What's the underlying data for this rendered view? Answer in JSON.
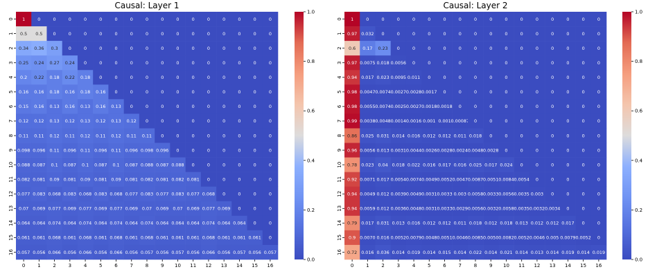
{
  "chart_data": [
    {
      "type": "heatmap",
      "title": "Causal: Layer 1",
      "xlabel": "",
      "ylabel": "",
      "x_ticks": [
        "0",
        "1",
        "2",
        "3",
        "4",
        "5",
        "6",
        "7",
        "8",
        "9",
        "10",
        "11",
        "12",
        "13",
        "14",
        "15",
        "16"
      ],
      "y_ticks": [
        "0",
        "1",
        "2",
        "3",
        "4",
        "5",
        "6",
        "7",
        "8",
        "9",
        "10",
        "11",
        "12",
        "13",
        "14",
        "15",
        "16"
      ],
      "colormap": "coolwarm",
      "vmin": 0,
      "vmax": 1,
      "colorbar_ticks": [
        "0.0",
        "0.2",
        "0.4",
        "0.6",
        "0.8",
        "1.0"
      ],
      "matrix": [
        [
          "1",
          "0",
          "0",
          "0",
          "0",
          "0",
          "0",
          "0",
          "0",
          "0",
          "0",
          "0",
          "0",
          "0",
          "0",
          "0",
          "0"
        ],
        [
          "0.5",
          "0.5",
          "0",
          "0",
          "0",
          "0",
          "0",
          "0",
          "0",
          "0",
          "0",
          "0",
          "0",
          "0",
          "0",
          "0",
          "0"
        ],
        [
          "0.34",
          "0.36",
          "0.3",
          "0",
          "0",
          "0",
          "0",
          "0",
          "0",
          "0",
          "0",
          "0",
          "0",
          "0",
          "0",
          "0",
          "0"
        ],
        [
          "0.25",
          "0.24",
          "0.27",
          "0.24",
          "0",
          "0",
          "0",
          "0",
          "0",
          "0",
          "0",
          "0",
          "0",
          "0",
          "0",
          "0",
          "0"
        ],
        [
          "0.2",
          "0.22",
          "0.18",
          "0.22",
          "0.18",
          "0",
          "0",
          "0",
          "0",
          "0",
          "0",
          "0",
          "0",
          "0",
          "0",
          "0",
          "0"
        ],
        [
          "0.16",
          "0.16",
          "0.18",
          "0.16",
          "0.18",
          "0.16",
          "0",
          "0",
          "0",
          "0",
          "0",
          "0",
          "0",
          "0",
          "0",
          "0",
          "0"
        ],
        [
          "0.15",
          "0.16",
          "0.13",
          "0.16",
          "0.13",
          "0.16",
          "0.13",
          "0",
          "0",
          "0",
          "0",
          "0",
          "0",
          "0",
          "0",
          "0",
          "0"
        ],
        [
          "0.12",
          "0.12",
          "0.13",
          "0.12",
          "0.13",
          "0.12",
          "0.13",
          "0.12",
          "0",
          "0",
          "0",
          "0",
          "0",
          "0",
          "0",
          "0",
          "0"
        ],
        [
          "0.11",
          "0.11",
          "0.12",
          "0.11",
          "0.12",
          "0.11",
          "0.12",
          "0.11",
          "0.11",
          "0",
          "0",
          "0",
          "0",
          "0",
          "0",
          "0",
          "0"
        ],
        [
          "0.098",
          "0.096",
          "0.11",
          "0.096",
          "0.11",
          "0.096",
          "0.11",
          "0.096",
          "0.098",
          "0.096",
          "0",
          "0",
          "0",
          "0",
          "0",
          "0",
          "0"
        ],
        [
          "0.088",
          "0.087",
          "0.1",
          "0.087",
          "0.1",
          "0.087",
          "0.1",
          "0.087",
          "0.088",
          "0.087",
          "0.088",
          "0",
          "0",
          "0",
          "0",
          "0",
          "0"
        ],
        [
          "0.082",
          "0.081",
          "0.09",
          "0.081",
          "0.09",
          "0.081",
          "0.09",
          "0.081",
          "0.082",
          "0.081",
          "0.082",
          "0.081",
          "0",
          "0",
          "0",
          "0",
          "0"
        ],
        [
          "0.077",
          "0.083",
          "0.068",
          "0.083",
          "0.068",
          "0.083",
          "0.068",
          "0.077",
          "0.083",
          "0.077",
          "0.083",
          "0.077",
          "0.068",
          "0",
          "0",
          "0",
          "0"
        ],
        [
          "0.07",
          "0.069",
          "0.077",
          "0.069",
          "0.077",
          "0.069",
          "0.077",
          "0.069",
          "0.07",
          "0.069",
          "0.07",
          "0.069",
          "0.077",
          "0.069",
          "0",
          "0",
          "0"
        ],
        [
          "0.064",
          "0.064",
          "0.074",
          "0.064",
          "0.074",
          "0.064",
          "0.074",
          "0.064",
          "0.074",
          "0.064",
          "0.064",
          "0.064",
          "0.074",
          "0.064",
          "0.064",
          "0",
          "0"
        ],
        [
          "0.061",
          "0.061",
          "0.068",
          "0.061",
          "0.068",
          "0.061",
          "0.068",
          "0.061",
          "0.068",
          "0.061",
          "0.061",
          "0.061",
          "0.068",
          "0.061",
          "0.061",
          "0.061",
          "0"
        ],
        [
          "0.057",
          "0.056",
          "0.066",
          "0.056",
          "0.066",
          "0.056",
          "0.066",
          "0.056",
          "0.057",
          "0.056",
          "0.057",
          "0.056",
          "0.066",
          "0.056",
          "0.057",
          "0.056",
          "0.057"
        ]
      ]
    },
    {
      "type": "heatmap",
      "title": "Causal: Layer 2",
      "xlabel": "",
      "ylabel": "",
      "x_ticks": [
        "0",
        "1",
        "2",
        "3",
        "4",
        "5",
        "6",
        "7",
        "8",
        "9",
        "10",
        "11",
        "12",
        "13",
        "14",
        "15",
        "16"
      ],
      "y_ticks": [
        "0",
        "1",
        "2",
        "3",
        "4",
        "5",
        "6",
        "7",
        "8",
        "9",
        "10",
        "11",
        "12",
        "13",
        "14",
        "15",
        "16"
      ],
      "colormap": "coolwarm",
      "vmin": 0,
      "vmax": 1,
      "colorbar_ticks": [
        "0.0",
        "0.2",
        "0.4",
        "0.6",
        "0.8",
        "1.0"
      ],
      "matrix": [
        [
          "1",
          "0",
          "0",
          "0",
          "0",
          "0",
          "0",
          "0",
          "0",
          "0",
          "0",
          "0",
          "0",
          "0",
          "0",
          "0",
          "0"
        ],
        [
          "0.97",
          "0.032",
          "0",
          "0",
          "0",
          "0",
          "0",
          "0",
          "0",
          "0",
          "0",
          "0",
          "0",
          "0",
          "0",
          "0",
          "0"
        ],
        [
          "0.6",
          "0.17",
          "0.23",
          "0",
          "0",
          "0",
          "0",
          "0",
          "0",
          "0",
          "0",
          "0",
          "0",
          "0",
          "0",
          "0",
          "0"
        ],
        [
          "0.97",
          "0.0075",
          "0.018",
          "0.0056",
          "0",
          "0",
          "0",
          "0",
          "0",
          "0",
          "0",
          "0",
          "0",
          "0",
          "0",
          "0",
          "0"
        ],
        [
          "0.94",
          "0.017",
          "0.023",
          "0.0095",
          "0.011",
          "0",
          "0",
          "0",
          "0",
          "0",
          "0",
          "0",
          "0",
          "0",
          "0",
          "0",
          "0"
        ],
        [
          "0.98",
          "0.0047",
          "0.0074",
          "0.0027",
          "0.0028",
          "0.0017",
          "0",
          "0",
          "0",
          "0",
          "0",
          "0",
          "0",
          "0",
          "0",
          "0",
          "0"
        ],
        [
          "0.98",
          "0.0055",
          "0.0074",
          "0.0025",
          "0.0027",
          "0.0018",
          "0.0018",
          "0",
          "0",
          "0",
          "0",
          "0",
          "0",
          "0",
          "0",
          "0",
          "0"
        ],
        [
          "0.99",
          "0.0038",
          "0.0048",
          "0.0014",
          "0.0016",
          "0.001",
          "0.001",
          "0.00087",
          "0",
          "0",
          "0",
          "0",
          "0",
          "0",
          "0",
          "0",
          "0"
        ],
        [
          "0.86",
          "0.025",
          "0.031",
          "0.014",
          "0.016",
          "0.012",
          "0.012",
          "0.011",
          "0.018",
          "0",
          "0",
          "0",
          "0",
          "0",
          "0",
          "0",
          "0"
        ],
        [
          "0.96",
          "0.0056",
          "0.013",
          "0.0031",
          "0.0044",
          "0.0026",
          "0.0028",
          "0.0024",
          "0.0048",
          "0.0028",
          "0",
          "0",
          "0",
          "0",
          "0",
          "0",
          "0"
        ],
        [
          "0.78",
          "0.023",
          "0.04",
          "0.018",
          "0.022",
          "0.016",
          "0.017",
          "0.016",
          "0.025",
          "0.017",
          "0.024",
          "0",
          "0",
          "0",
          "0",
          "0",
          "0"
        ],
        [
          "0.92",
          "0.0071",
          "0.017",
          "0.0054",
          "0.0074",
          "0.0049",
          "0.0052",
          "0.0047",
          "0.0087",
          "0.0051",
          "0.0084",
          "0.0054",
          "0",
          "0",
          "0",
          "0",
          "0"
        ],
        [
          "0.94",
          "0.0049",
          "0.012",
          "0.0039",
          "0.0049",
          "0.0031",
          "0.0033",
          "0.003",
          "0.0058",
          "0.0033",
          "0.0056",
          "0.0035",
          "0.003",
          "0",
          "0",
          "0",
          "0"
        ],
        [
          "0.94",
          "0.0059",
          "0.012",
          "0.0036",
          "0.0048",
          "0.0031",
          "0.0033",
          "0.0029",
          "0.0056",
          "0.0032",
          "0.0058",
          "0.0035",
          "0.0032",
          "0.0034",
          "0",
          "0",
          "0"
        ],
        [
          "0.79",
          "0.017",
          "0.031",
          "0.013",
          "0.016",
          "0.012",
          "0.012",
          "0.011",
          "0.018",
          "0.012",
          "0.018",
          "0.013",
          "0.012",
          "0.012",
          "0.017",
          "0",
          "0"
        ],
        [
          "0.9",
          "0.0070",
          "0.016",
          "0.0052",
          "0.0079",
          "0.0048",
          "0.0051",
          "0.0046",
          "0.0085",
          "0.0050",
          "0.0082",
          "0.0052",
          "0.0046",
          "0.005",
          "0.0079",
          "0.0052",
          "0"
        ],
        [
          "0.72",
          "0.016",
          "0.036",
          "0.014",
          "0.019",
          "0.014",
          "0.015",
          "0.014",
          "0.022",
          "0.014",
          "0.021",
          "0.014",
          "0.013",
          "0.014",
          "0.019",
          "0.014",
          "0.019"
        ]
      ]
    }
  ]
}
